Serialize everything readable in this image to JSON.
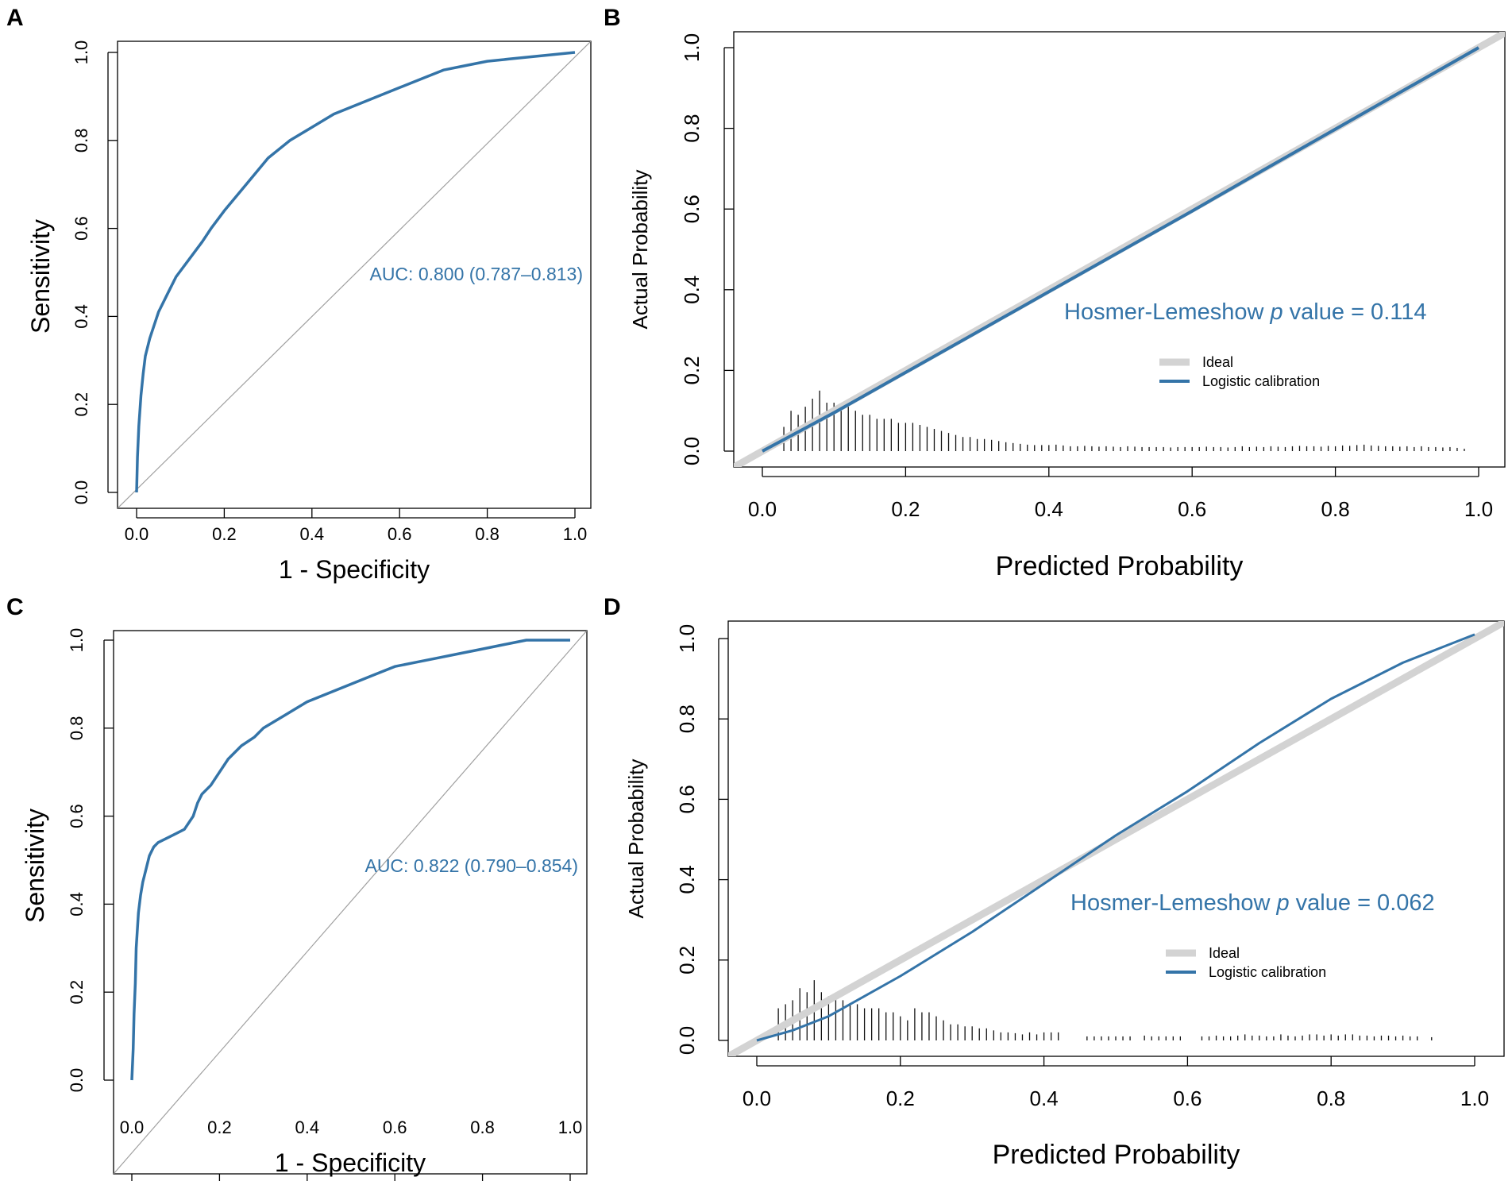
{
  "colors": {
    "curve": "#3474a8",
    "ideal": "#d3d3d3",
    "diagonal": "#a0a0a0",
    "axis": "#000000"
  },
  "chart_data": [
    {
      "panel": "A",
      "type": "line",
      "title": "",
      "xlabel": "1 - Specificity",
      "ylabel": "Sensitivity",
      "xlim": [
        0,
        1
      ],
      "ylim": [
        0,
        1
      ],
      "xticks": [
        "0.0",
        "0.2",
        "0.4",
        "0.6",
        "0.8",
        "1.0"
      ],
      "yticks": [
        "0.0",
        "0.2",
        "0.4",
        "0.6",
        "0.8",
        "1.0"
      ],
      "annotation": "AUC: 0.800 (0.787–0.813)",
      "series": [
        {
          "name": "ROC",
          "x": [
            0,
            0.002,
            0.005,
            0.01,
            0.015,
            0.02,
            0.03,
            0.04,
            0.05,
            0.07,
            0.09,
            0.12,
            0.15,
            0.17,
            0.2,
            0.25,
            0.3,
            0.35,
            0.4,
            0.45,
            0.5,
            0.55,
            0.6,
            0.65,
            0.7,
            0.75,
            0.8,
            0.85,
            0.9,
            0.95,
            1.0
          ],
          "y": [
            0,
            0.08,
            0.15,
            0.22,
            0.27,
            0.31,
            0.35,
            0.38,
            0.41,
            0.45,
            0.49,
            0.53,
            0.57,
            0.6,
            0.64,
            0.7,
            0.76,
            0.8,
            0.83,
            0.86,
            0.88,
            0.9,
            0.92,
            0.94,
            0.96,
            0.97,
            0.98,
            0.985,
            0.99,
            0.995,
            1.0
          ]
        },
        {
          "name": "Reference",
          "x": [
            0,
            1
          ],
          "y": [
            0,
            1
          ]
        }
      ]
    },
    {
      "panel": "B",
      "type": "line",
      "title": "",
      "xlabel": "Predicted Probability",
      "ylabel": "Actual Probability",
      "xlim": [
        0,
        1
      ],
      "ylim": [
        0,
        1
      ],
      "xticks": [
        "0.0",
        "0.2",
        "0.4",
        "0.6",
        "0.8",
        "1.0"
      ],
      "yticks": [
        "0.0",
        "0.2",
        "0.4",
        "0.6",
        "0.8",
        "1.0"
      ],
      "annotation_prefix": "Hosmer-Lemeshow ",
      "annotation_p": "p",
      "annotation_suffix": " value  = 0.114",
      "legend": [
        "Ideal",
        "Logistic calibration"
      ],
      "series": [
        {
          "name": "Ideal",
          "x": [
            -0.05,
            1.05
          ],
          "y": [
            -0.05,
            1.05
          ]
        },
        {
          "name": "Logistic calibration",
          "x": [
            0,
            0.1,
            0.2,
            0.3,
            0.4,
            0.5,
            0.6,
            0.7,
            0.8,
            0.9,
            1.0
          ],
          "y": [
            0,
            0.095,
            0.195,
            0.295,
            0.395,
            0.495,
            0.595,
            0.697,
            0.798,
            0.899,
            1.0
          ]
        }
      ],
      "rug_x": [
        0.03,
        0.04,
        0.05,
        0.06,
        0.07,
        0.08,
        0.09,
        0.1,
        0.11,
        0.12,
        0.13,
        0.14,
        0.15,
        0.16,
        0.17,
        0.18,
        0.19,
        0.2,
        0.21,
        0.22,
        0.23,
        0.24,
        0.25,
        0.26,
        0.27,
        0.28,
        0.29,
        0.3,
        0.31,
        0.32,
        0.33,
        0.34,
        0.35,
        0.36,
        0.37,
        0.38,
        0.39,
        0.4,
        0.41,
        0.42,
        0.43,
        0.44,
        0.45,
        0.46,
        0.47,
        0.48,
        0.49,
        0.5,
        0.51,
        0.52,
        0.53,
        0.54,
        0.55,
        0.56,
        0.57,
        0.58,
        0.59,
        0.6,
        0.61,
        0.62,
        0.63,
        0.64,
        0.65,
        0.66,
        0.67,
        0.68,
        0.69,
        0.7,
        0.71,
        0.72,
        0.73,
        0.74,
        0.75,
        0.76,
        0.77,
        0.78,
        0.79,
        0.8,
        0.81,
        0.82,
        0.83,
        0.84,
        0.85,
        0.86,
        0.87,
        0.88,
        0.89,
        0.9,
        0.91,
        0.92,
        0.93,
        0.94,
        0.95,
        0.96,
        0.97,
        0.98
      ],
      "rug_h": [
        0.06,
        0.1,
        0.09,
        0.11,
        0.13,
        0.15,
        0.12,
        0.12,
        0.1,
        0.11,
        0.1,
        0.09,
        0.09,
        0.08,
        0.08,
        0.08,
        0.07,
        0.07,
        0.07,
        0.065,
        0.06,
        0.055,
        0.05,
        0.045,
        0.04,
        0.035,
        0.035,
        0.03,
        0.03,
        0.028,
        0.025,
        0.022,
        0.02,
        0.018,
        0.016,
        0.015,
        0.015,
        0.015,
        0.016,
        0.014,
        0.012,
        0.012,
        0.013,
        0.012,
        0.011,
        0.012,
        0.011,
        0.01,
        0.012,
        0.011,
        0.01,
        0.01,
        0.01,
        0.01,
        0.009,
        0.01,
        0.01,
        0.01,
        0.01,
        0.011,
        0.01,
        0.01,
        0.009,
        0.01,
        0.012,
        0.01,
        0.011,
        0.01,
        0.012,
        0.011,
        0.01,
        0.012,
        0.013,
        0.012,
        0.012,
        0.011,
        0.013,
        0.012,
        0.014,
        0.013,
        0.015,
        0.016,
        0.014,
        0.013,
        0.012,
        0.012,
        0.011,
        0.012,
        0.01,
        0.012,
        0.01,
        0.01,
        0.009,
        0.01,
        0.008,
        0.006
      ]
    },
    {
      "panel": "C",
      "type": "line",
      "title": "",
      "xlabel": "1 - Specificity",
      "ylabel": "Sensitivity",
      "xlim": [
        0,
        1
      ],
      "ylim": [
        0,
        1
      ],
      "xticks": [
        "0.0",
        "0.2",
        "0.4",
        "0.6",
        "0.8",
        "1.0"
      ],
      "yticks": [
        "0.0",
        "0.2",
        "0.4",
        "0.6",
        "0.8",
        "1.0"
      ],
      "annotation": "AUC: 0.822 (0.790–0.854)",
      "series": [
        {
          "name": "ROC",
          "x": [
            0,
            0.003,
            0.005,
            0.008,
            0.01,
            0.015,
            0.02,
            0.025,
            0.03,
            0.04,
            0.05,
            0.06,
            0.08,
            0.1,
            0.12,
            0.14,
            0.15,
            0.16,
            0.18,
            0.2,
            0.22,
            0.25,
            0.28,
            0.3,
            0.35,
            0.4,
            0.45,
            0.5,
            0.55,
            0.6,
            0.65,
            0.7,
            0.75,
            0.8,
            0.85,
            0.9,
            1.0
          ],
          "y": [
            0,
            0.07,
            0.15,
            0.22,
            0.3,
            0.38,
            0.42,
            0.45,
            0.47,
            0.51,
            0.53,
            0.54,
            0.55,
            0.56,
            0.57,
            0.6,
            0.63,
            0.65,
            0.67,
            0.7,
            0.73,
            0.76,
            0.78,
            0.8,
            0.83,
            0.86,
            0.88,
            0.9,
            0.92,
            0.94,
            0.95,
            0.96,
            0.97,
            0.98,
            0.99,
            1.0,
            1.0
          ]
        },
        {
          "name": "Reference",
          "x": [
            0,
            1
          ],
          "y": [
            0,
            1
          ]
        }
      ]
    },
    {
      "panel": "D",
      "type": "line",
      "title": "",
      "xlabel": "Predicted Probability",
      "ylabel": "Actual Probability",
      "xlim": [
        0,
        1
      ],
      "ylim": [
        0,
        1
      ],
      "xticks": [
        "0.0",
        "0.2",
        "0.4",
        "0.6",
        "0.8",
        "1.0"
      ],
      "yticks": [
        "0.0",
        "0.2",
        "0.4",
        "0.6",
        "0.8",
        "1.0"
      ],
      "annotation_prefix": "Hosmer-Lemeshow ",
      "annotation_p": "p",
      "annotation_suffix": " value  = 0.062",
      "legend": [
        "Ideal",
        "Logistic calibration"
      ],
      "series": [
        {
          "name": "Ideal",
          "x": [
            -0.05,
            1.05
          ],
          "y": [
            -0.05,
            1.05
          ]
        },
        {
          "name": "Logistic calibration",
          "x": [
            0,
            0.05,
            0.1,
            0.15,
            0.2,
            0.3,
            0.4,
            0.5,
            0.6,
            0.7,
            0.8,
            0.9,
            1.0
          ],
          "y": [
            0,
            0.025,
            0.06,
            0.11,
            0.16,
            0.27,
            0.39,
            0.51,
            0.62,
            0.74,
            0.85,
            0.94,
            1.01
          ]
        }
      ],
      "rug_x": [
        0.03,
        0.04,
        0.05,
        0.06,
        0.07,
        0.08,
        0.09,
        0.1,
        0.11,
        0.12,
        0.13,
        0.14,
        0.15,
        0.16,
        0.17,
        0.18,
        0.19,
        0.2,
        0.21,
        0.22,
        0.23,
        0.24,
        0.25,
        0.26,
        0.27,
        0.28,
        0.29,
        0.3,
        0.31,
        0.32,
        0.33,
        0.34,
        0.35,
        0.36,
        0.37,
        0.38,
        0.39,
        0.4,
        0.41,
        0.42,
        0.46,
        0.47,
        0.48,
        0.49,
        0.5,
        0.51,
        0.52,
        0.54,
        0.55,
        0.56,
        0.57,
        0.58,
        0.59,
        0.62,
        0.63,
        0.64,
        0.65,
        0.66,
        0.67,
        0.68,
        0.69,
        0.7,
        0.71,
        0.72,
        0.73,
        0.74,
        0.75,
        0.76,
        0.77,
        0.78,
        0.79,
        0.8,
        0.81,
        0.82,
        0.83,
        0.84,
        0.85,
        0.86,
        0.87,
        0.88,
        0.89,
        0.9,
        0.91,
        0.92,
        0.94
      ],
      "rug_h": [
        0.08,
        0.09,
        0.1,
        0.13,
        0.12,
        0.15,
        0.12,
        0.11,
        0.11,
        0.1,
        0.09,
        0.09,
        0.08,
        0.08,
        0.08,
        0.07,
        0.07,
        0.06,
        0.05,
        0.08,
        0.07,
        0.07,
        0.06,
        0.05,
        0.04,
        0.04,
        0.035,
        0.035,
        0.03,
        0.03,
        0.025,
        0.02,
        0.02,
        0.018,
        0.015,
        0.02,
        0.015,
        0.02,
        0.02,
        0.02,
        0.01,
        0.01,
        0.01,
        0.01,
        0.01,
        0.01,
        0.01,
        0.012,
        0.01,
        0.01,
        0.01,
        0.01,
        0.01,
        0.01,
        0.01,
        0.012,
        0.01,
        0.01,
        0.012,
        0.015,
        0.012,
        0.012,
        0.01,
        0.01,
        0.015,
        0.012,
        0.01,
        0.012,
        0.015,
        0.015,
        0.012,
        0.015,
        0.012,
        0.015,
        0.015,
        0.012,
        0.012,
        0.01,
        0.012,
        0.012,
        0.01,
        0.012,
        0.01,
        0.01,
        0.008
      ]
    }
  ]
}
